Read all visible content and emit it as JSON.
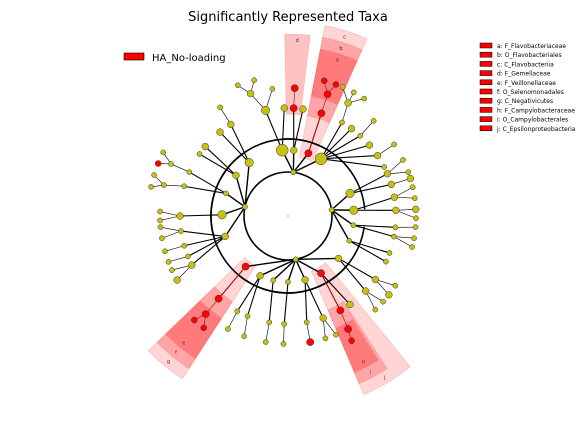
{
  "chart_data": {
    "type": "cladogram",
    "title": "Significantly Represented Taxa",
    "group_legend": [
      {
        "name": "HA_No-loading",
        "color": "#ff0000"
      }
    ],
    "colors": {
      "node_normal": "#c8c010",
      "node_enriched": "#ff0000",
      "highlight": "#ff4040"
    },
    "taxa_legend": [
      "a: F_Flavobacteriaceae",
      "b: O_Flavobacteriales",
      "c: C_Flavobacteriia",
      "d: F_Gemellaceae",
      "e: F_Veillonellaceae",
      "f: O_Selenomonadales",
      "g: C_Negativicutes",
      "h: F_Campylobacteraceae",
      "i: O_Campylobacterales",
      "j: C_Epsilonproteobacteria"
    ],
    "clade_labels": [
      "a",
      "b",
      "c",
      "d",
      "e",
      "f",
      "g",
      "h",
      "i",
      "j"
    ]
  }
}
